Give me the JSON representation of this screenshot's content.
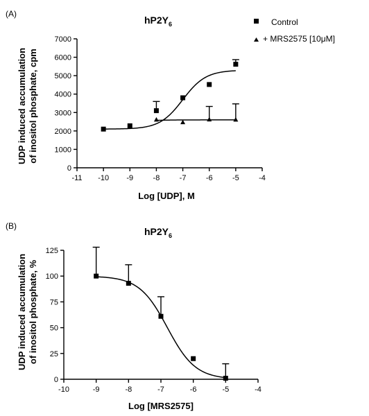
{
  "chart_data": [
    {
      "panel": "(A)",
      "type": "scatter",
      "title": "hP2Y",
      "title_subscript": "6",
      "xlabel": "Log [UDP], M",
      "ylabel_lines": [
        "UDP induced accumulation",
        "of inositol phosphate, cpm"
      ],
      "xlim": [
        -11,
        -4
      ],
      "ylim": [
        0,
        7000
      ],
      "xticks": [
        -11,
        -10,
        -9,
        -8,
        -7,
        -6,
        -5,
        -4
      ],
      "yticks": [
        0,
        1000,
        2000,
        3000,
        4000,
        5000,
        6000,
        7000
      ],
      "legend_position": "top-right",
      "series": [
        {
          "name": "Control",
          "marker": "square",
          "x": [
            -10,
            -9,
            -8,
            -7,
            -6,
            -5
          ],
          "y": [
            2100,
            2280,
            3100,
            3800,
            4520,
            5620
          ],
          "err": [
            0,
            0,
            500,
            0,
            0,
            250
          ],
          "fit": {
            "bottom": 2100,
            "top": 5300,
            "logEC50": -7.0,
            "hill": 1.0
          }
        },
        {
          "name": "+ MRS2575 [10μM]",
          "marker": "triangle",
          "x": [
            -8,
            -7,
            -6,
            -5
          ],
          "y": [
            2620,
            2480,
            2630,
            2620
          ],
          "err": [
            0,
            0,
            700,
            850
          ],
          "fit": {
            "bottom": 2460,
            "top": 2600,
            "logEC50": -8.6,
            "hill": 1.0
          }
        }
      ]
    },
    {
      "panel": "(B)",
      "type": "scatter",
      "title": "hP2Y",
      "title_subscript": "6",
      "xlabel": "Log [MRS2575]",
      "ylabel_lines": [
        "UDP induced accumulation",
        "of inositol phosphate, %"
      ],
      "xlim": [
        -10,
        -4
      ],
      "ylim": [
        0,
        125
      ],
      "xticks": [
        -10,
        -9,
        -8,
        -7,
        -6,
        -5,
        -4
      ],
      "yticks": [
        0,
        25,
        50,
        75,
        100,
        125
      ],
      "series": [
        {
          "marker": "square",
          "x": [
            -9,
            -8,
            -7,
            -6,
            -5
          ],
          "y": [
            100,
            93,
            61,
            20,
            1
          ],
          "err": [
            28,
            18,
            19,
            0,
            14
          ],
          "fit": {
            "bottom": 0,
            "top": 100,
            "logIC50": -6.8,
            "hill": -1.0
          }
        }
      ]
    }
  ]
}
